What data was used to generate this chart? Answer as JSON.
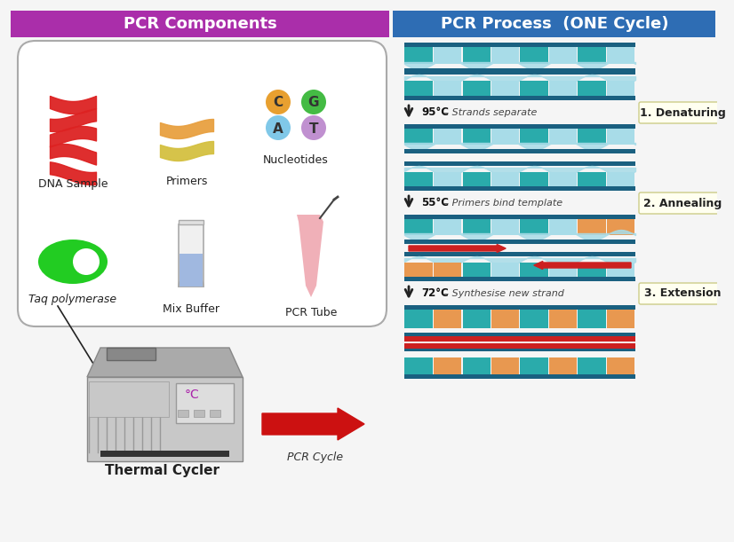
{
  "bg_color": "#f5f5f5",
  "left_header_color": "#aa2eaa",
  "right_header_color": "#2e6db4",
  "left_header_text": "PCR Components",
  "right_header_text": "PCR Process  (ONE Cycle)",
  "header_text_color": "#ffffff",
  "header_fontsize": 13,
  "dna_helix_color": "#dd2222",
  "primer1_color": "#e8a040",
  "primer2_color": "#d4c040",
  "nuc_C_color": "#e8a030",
  "nuc_G_color": "#44bb44",
  "nuc_A_color": "#80c8e8",
  "nuc_T_color": "#c090d0",
  "polymerase_color": "#22cc22",
  "buffer_liquid_color": "#a0b8e0",
  "tube_color": "#f0b0b8",
  "box_bg": "#ffffff",
  "box_border": "#aaaaaa",
  "thermal_cycler_color": "#c0c0c0",
  "arrow_color": "#cc1111",
  "step_box_color": "#fffff0",
  "strand_dark": "#1a6080",
  "strand_light": "#a8dce8",
  "strand_teal": "#2aabab",
  "strand_mid": "#5bbccc",
  "strand_orange": "#e89850",
  "strand_red": "#cc2020",
  "strand_white": "#ffffff",
  "step_labels": [
    "1. Denaturing",
    "2. Annealing",
    "3. Extension"
  ],
  "step_temps": [
    "95°C",
    "55°C",
    "72°C"
  ],
  "step_descs": [
    "Strands separate",
    "Primers bind template",
    "Synthesise new strand"
  ],
  "thermal_label": "Thermal Cycler",
  "pcr_cycle_label": "PCR Cycle",
  "component_labels": [
    "DNA Sample",
    "Primers",
    "Nucleotides",
    "Taq polymerase",
    "Mix Buffer",
    "PCR Tube"
  ]
}
